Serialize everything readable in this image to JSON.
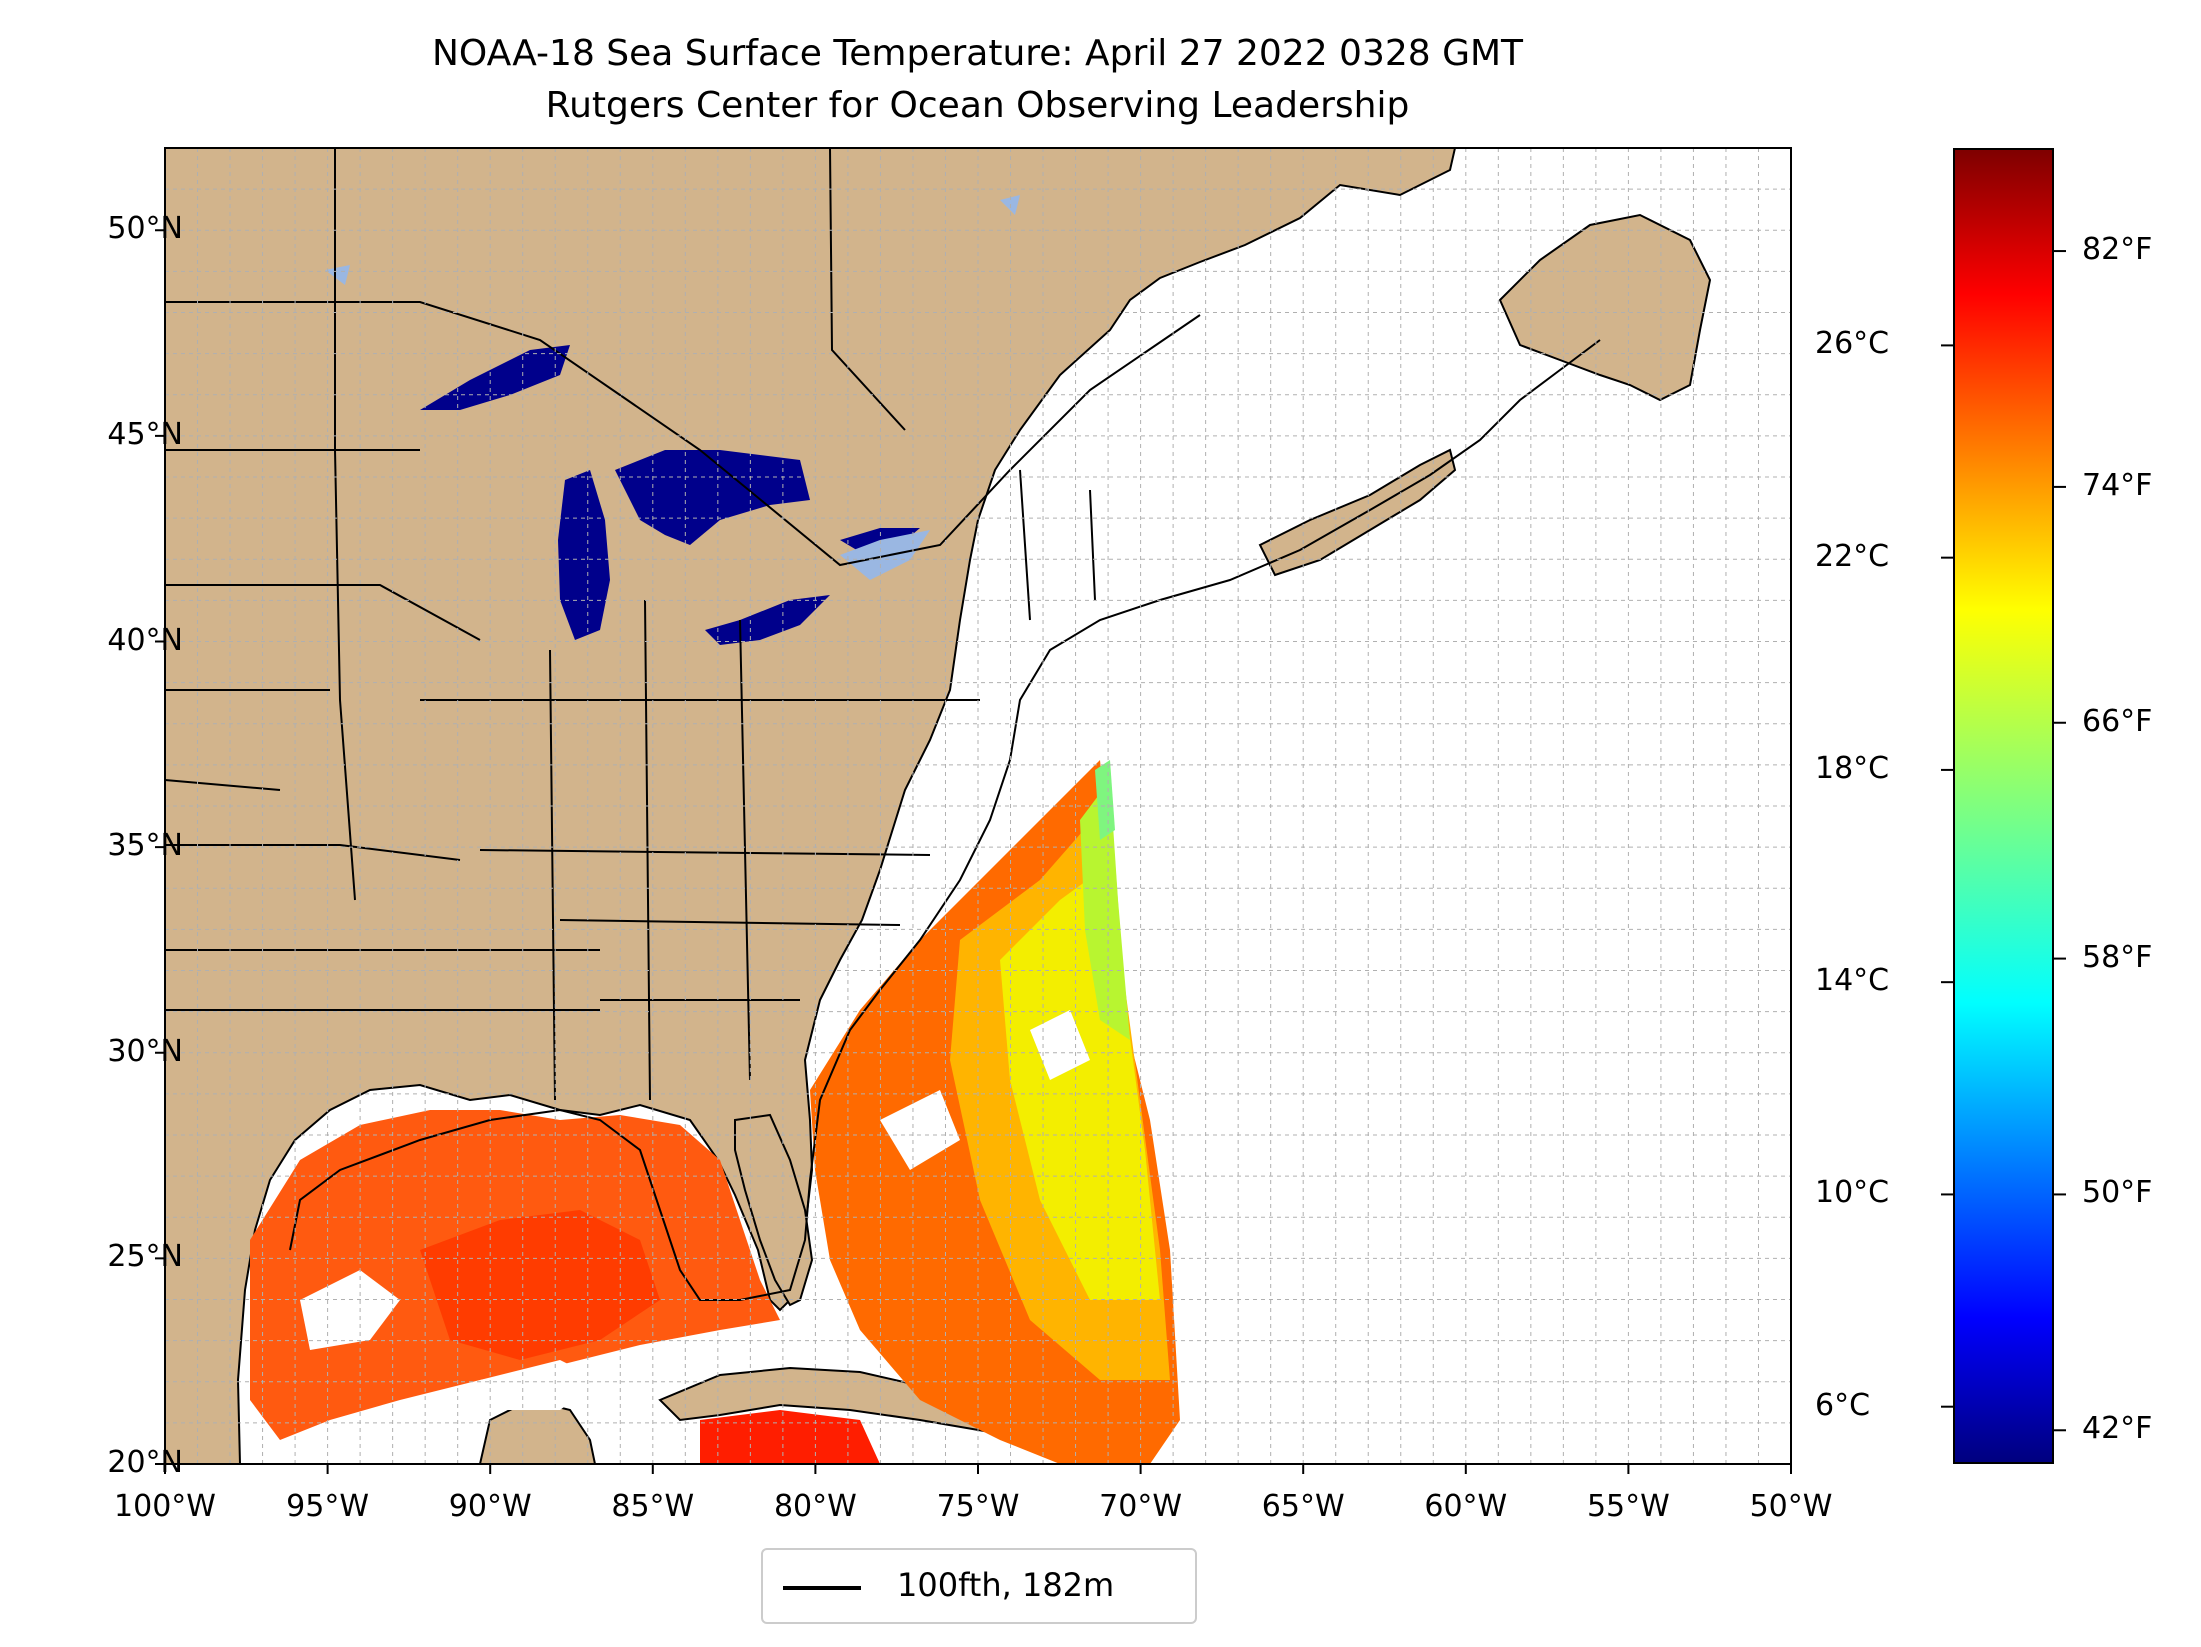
{
  "title": "NOAA-18 Sea Surface Temperature: April 27 2022 0328 GMT",
  "subtitle": "Rutgers Center for Ocean Observing Leadership",
  "map": {
    "lon_range": [
      -100,
      -50
    ],
    "lat_range": [
      20,
      52
    ],
    "lon_ticks": [
      {
        "value": -100,
        "label": "100°W"
      },
      {
        "value": -95,
        "label": "95°W"
      },
      {
        "value": -90,
        "label": "90°W"
      },
      {
        "value": -85,
        "label": "85°W"
      },
      {
        "value": -80,
        "label": "80°W"
      },
      {
        "value": -75,
        "label": "75°W"
      },
      {
        "value": -70,
        "label": "70°W"
      },
      {
        "value": -65,
        "label": "65°W"
      },
      {
        "value": -60,
        "label": "60°W"
      },
      {
        "value": -55,
        "label": "55°W"
      },
      {
        "value": -50,
        "label": "50°W"
      }
    ],
    "lat_ticks": [
      {
        "value": 20,
        "label": "20°N"
      },
      {
        "value": 25,
        "label": "25°N"
      },
      {
        "value": 30,
        "label": "30°N"
      },
      {
        "value": 35,
        "label": "35°N"
      },
      {
        "value": 40,
        "label": "40°N"
      },
      {
        "value": 45,
        "label": "45°N"
      },
      {
        "value": 50,
        "label": "50°N"
      }
    ],
    "grid": true,
    "land_color": "#d2b48c",
    "ocean_color": "#ffffff",
    "lake_color": "#9ab7e2",
    "isobath_color": "#000000"
  },
  "colorbar": {
    "colormap": "jet",
    "celsius_ticks": [
      {
        "value": 6,
        "label": "6°C"
      },
      {
        "value": 10,
        "label": "10°C"
      },
      {
        "value": 14,
        "label": "14°C"
      },
      {
        "value": 18,
        "label": "18°C"
      },
      {
        "value": 22,
        "label": "22°C"
      },
      {
        "value": 26,
        "label": "26°C"
      }
    ],
    "fahrenheit_ticks": [
      {
        "value": 42,
        "label": "42°F"
      },
      {
        "value": 50,
        "label": "50°F"
      },
      {
        "value": 58,
        "label": "58°F"
      },
      {
        "value": 66,
        "label": "66°F"
      },
      {
        "value": 74,
        "label": "74°F"
      },
      {
        "value": 82,
        "label": "82°F"
      }
    ]
  },
  "legend": {
    "label": "100fth, 182m",
    "line_color": "#000000"
  }
}
